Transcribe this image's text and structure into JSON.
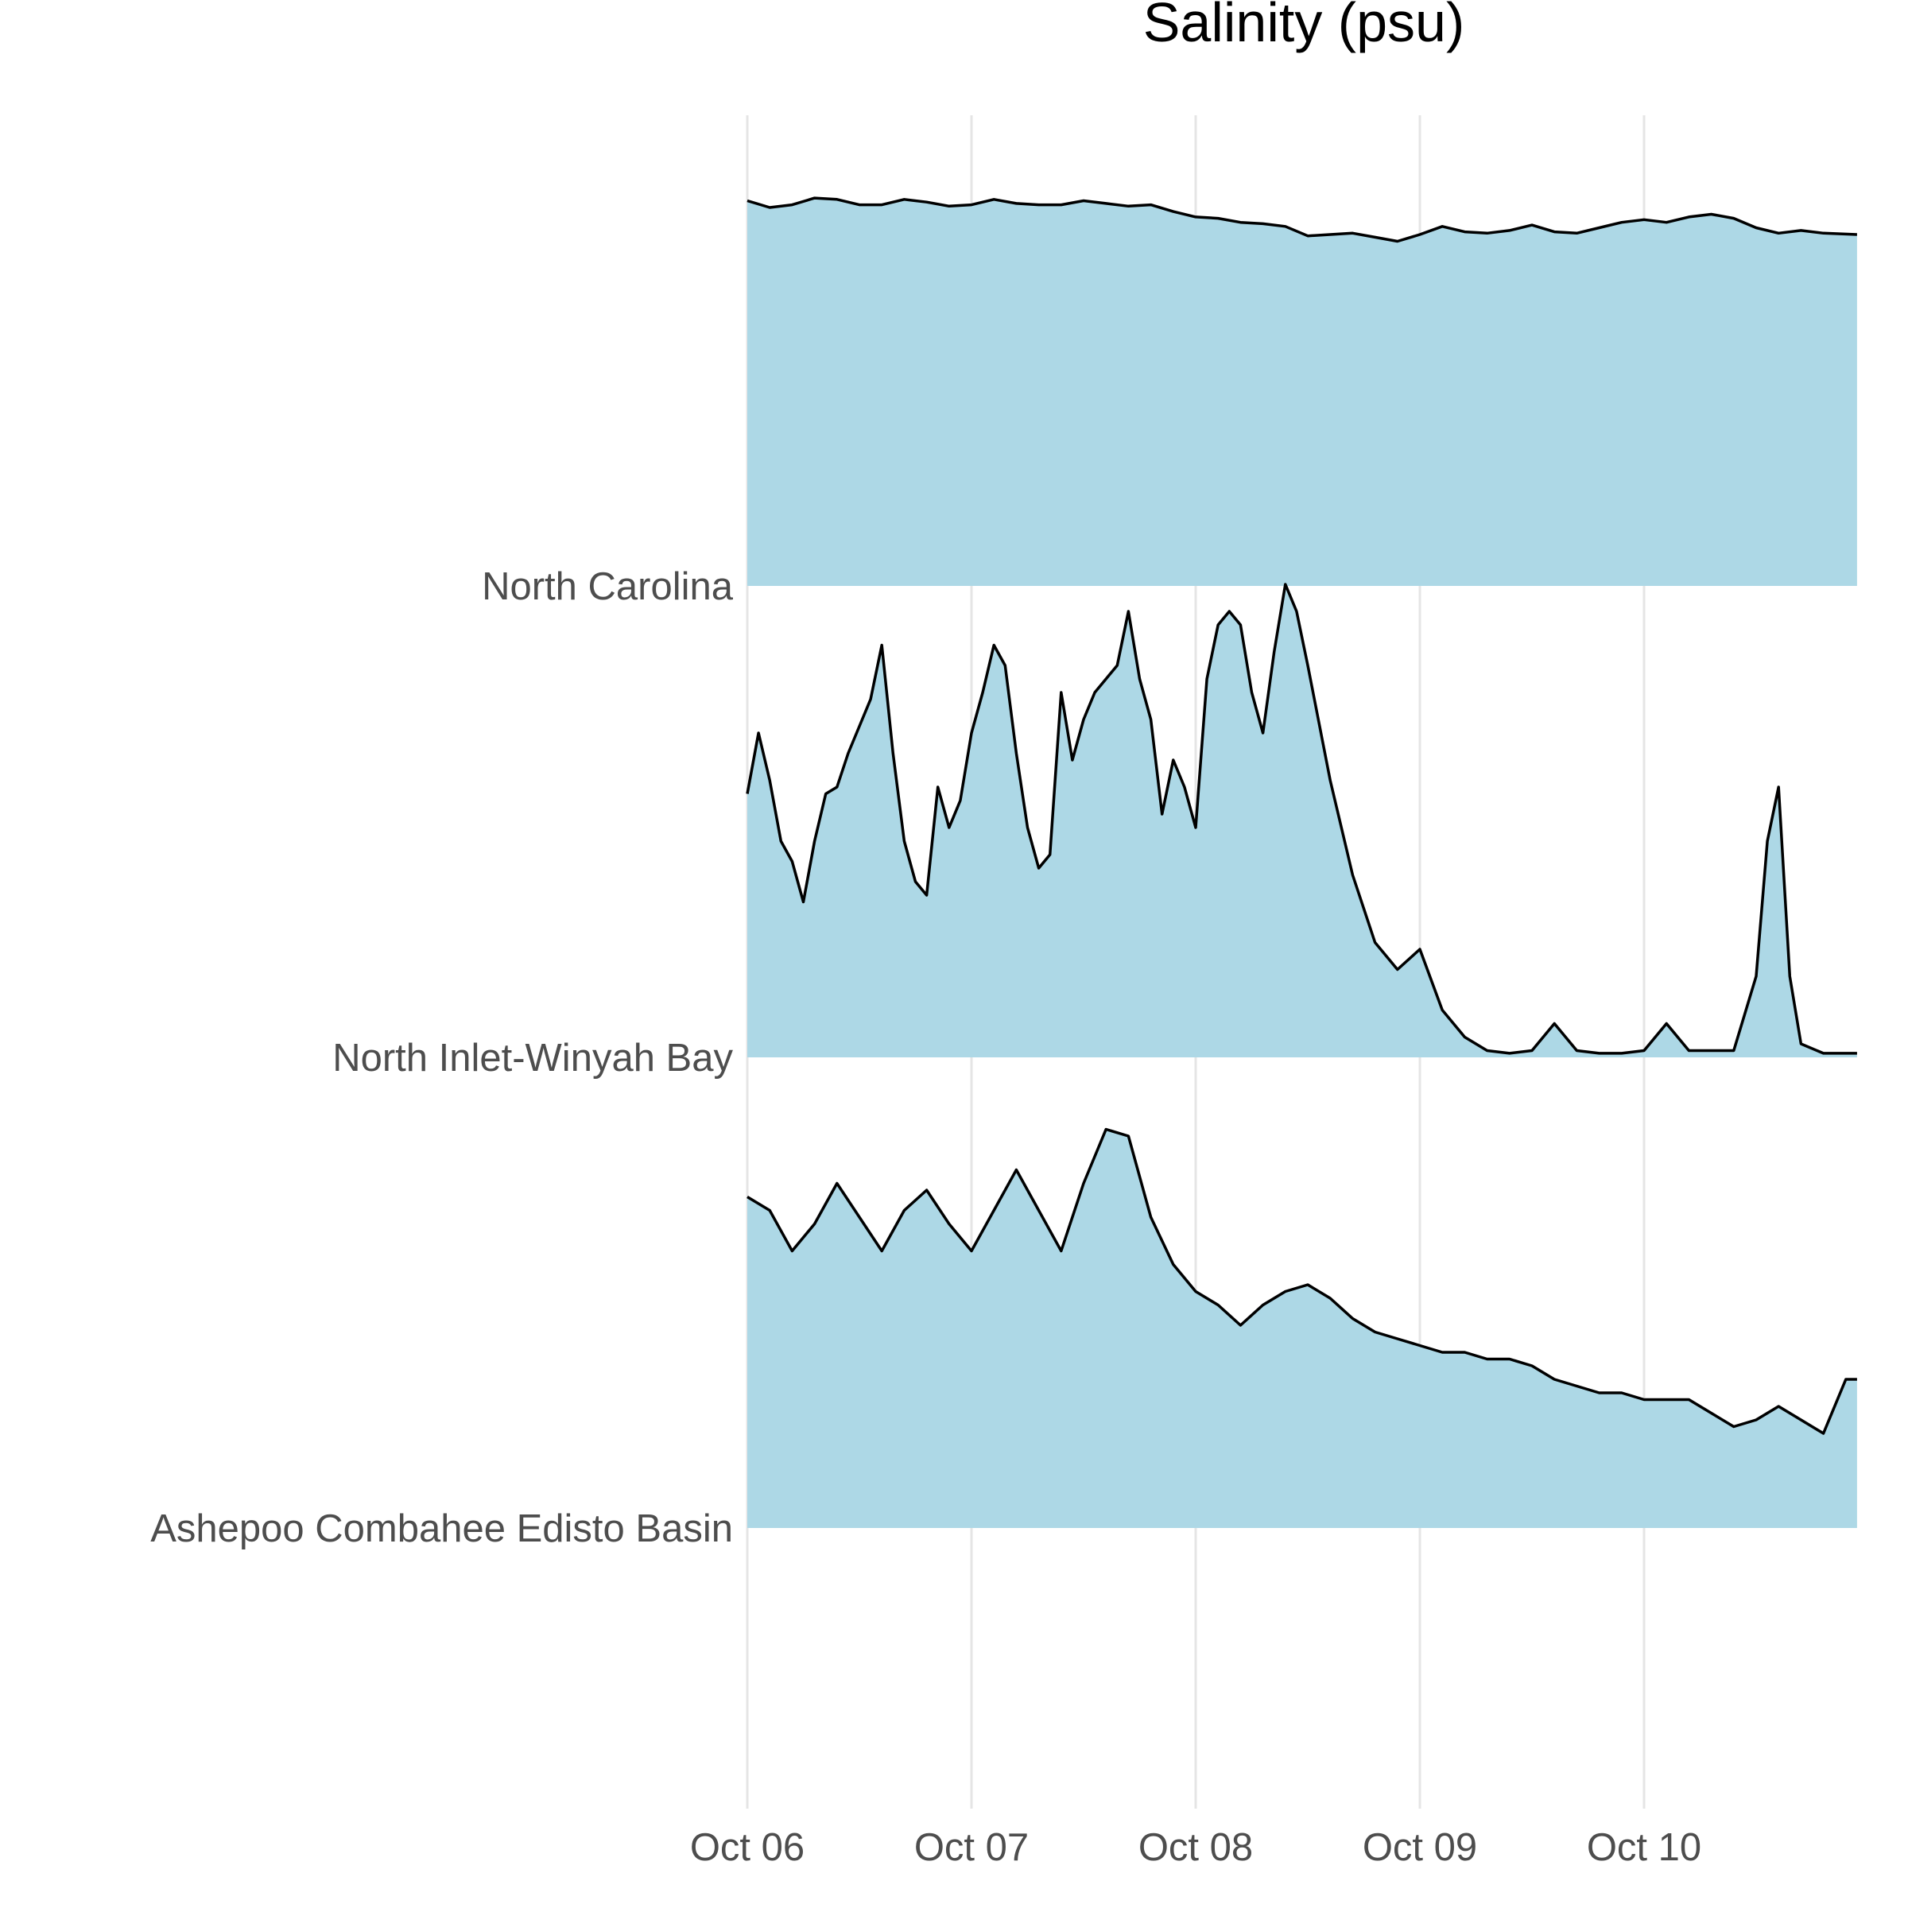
{
  "chart_data": {
    "type": "area",
    "title": "Salinity (psu)",
    "xlabel": "",
    "ylabel": "",
    "layout": "ridgeline",
    "x_ticks": [
      "Oct 06",
      "Oct 07",
      "Oct 08",
      "Oct 09",
      "Oct 10"
    ],
    "x_range_days": [
      0,
      4.95
    ],
    "grid": "vertical major gridlines",
    "colors": {
      "fill": "#add8e6",
      "line": "#000000",
      "grid": "#e5e5e5",
      "text": "#4d4d4d"
    },
    "series": [
      {
        "name": "North Carolina",
        "x": [
          0,
          0.1,
          0.2,
          0.3,
          0.4,
          0.5,
          0.6,
          0.7,
          0.8,
          0.9,
          1.0,
          1.1,
          1.2,
          1.3,
          1.4,
          1.5,
          1.6,
          1.7,
          1.8,
          1.9,
          2.0,
          2.1,
          2.2,
          2.3,
          2.4,
          2.5,
          2.6,
          2.7,
          2.8,
          2.9,
          3.0,
          3.1,
          3.2,
          3.3,
          3.4,
          3.5,
          3.6,
          3.7,
          3.8,
          3.9,
          4.0,
          4.1,
          4.2,
          4.3,
          4.4,
          4.5,
          4.6,
          4.7,
          4.8,
          4.95
        ],
        "y": [
          28.5,
          28.0,
          28.2,
          28.7,
          28.6,
          28.2,
          28.2,
          28.6,
          28.4,
          28.1,
          28.2,
          28.6,
          28.3,
          28.2,
          28.2,
          28.5,
          28.3,
          28.1,
          28.2,
          27.7,
          27.3,
          27.2,
          26.9,
          26.8,
          26.6,
          25.9,
          26.0,
          26.1,
          25.8,
          25.5,
          26.0,
          26.6,
          26.2,
          26.1,
          26.3,
          26.7,
          26.2,
          26.1,
          26.5,
          26.9,
          27.1,
          26.9,
          27.3,
          27.5,
          27.2,
          26.5,
          26.1,
          26.3,
          26.1,
          26.0
        ]
      },
      {
        "name": "North Inlet-Winyah Bay",
        "x": [
          0,
          0.05,
          0.1,
          0.15,
          0.2,
          0.25,
          0.3,
          0.35,
          0.4,
          0.45,
          0.5,
          0.55,
          0.6,
          0.65,
          0.7,
          0.75,
          0.8,
          0.85,
          0.9,
          0.95,
          1.0,
          1.05,
          1.1,
          1.15,
          1.2,
          1.25,
          1.3,
          1.35,
          1.4,
          1.45,
          1.5,
          1.55,
          1.6,
          1.65,
          1.7,
          1.75,
          1.8,
          1.85,
          1.9,
          1.95,
          2.0,
          2.05,
          2.1,
          2.15,
          2.2,
          2.25,
          2.3,
          2.35,
          2.4,
          2.45,
          2.5,
          2.6,
          2.7,
          2.8,
          2.9,
          3.0,
          3.1,
          3.2,
          3.3,
          3.4,
          3.5,
          3.6,
          3.7,
          3.8,
          3.9,
          4.0,
          4.1,
          4.2,
          4.3,
          4.4,
          4.5,
          4.55,
          4.6,
          4.65,
          4.7,
          4.8,
          4.95
        ],
        "y": [
          19.5,
          24,
          20.5,
          16,
          14.5,
          11.5,
          16,
          19.5,
          20,
          22.5,
          24.5,
          26.5,
          30.5,
          22.5,
          16,
          13,
          12,
          20,
          17,
          19,
          24,
          27,
          30.5,
          29,
          22.5,
          17,
          14,
          15,
          27,
          22,
          25,
          27,
          28,
          29,
          33,
          28,
          25,
          18,
          22,
          20,
          17,
          28,
          32,
          33,
          32,
          27,
          24,
          30,
          35,
          33,
          29,
          20.5,
          13.5,
          8.5,
          6.5,
          8,
          3.5,
          1.5,
          0.5,
          0.3,
          0.5,
          2.5,
          0.5,
          0.3,
          0.3,
          0.5,
          2.5,
          0.5,
          0.5,
          0.5,
          6,
          16,
          20,
          6,
          1,
          0.3,
          0.3
        ]
      },
      {
        "name": "Ashepoo Combahee Edisto Basin",
        "x": [
          0,
          0.1,
          0.2,
          0.3,
          0.4,
          0.5,
          0.6,
          0.7,
          0.8,
          0.9,
          1.0,
          1.1,
          1.2,
          1.3,
          1.4,
          1.5,
          1.6,
          1.7,
          1.8,
          1.9,
          2.0,
          2.1,
          2.2,
          2.3,
          2.4,
          2.5,
          2.6,
          2.7,
          2.8,
          2.9,
          3.0,
          3.1,
          3.2,
          3.3,
          3.4,
          3.5,
          3.6,
          3.7,
          3.8,
          3.9,
          4.0,
          4.1,
          4.2,
          4.3,
          4.4,
          4.5,
          4.6,
          4.7,
          4.8,
          4.9,
          4.95
        ],
        "y": [
          24.5,
          23.5,
          20.5,
          22.5,
          25.5,
          23,
          20.5,
          23.5,
          25,
          22.5,
          20.5,
          23.5,
          26.5,
          23.5,
          20.5,
          25.5,
          29.5,
          29,
          23,
          19.5,
          17.5,
          16.5,
          15,
          16.5,
          17.5,
          18,
          17,
          15.5,
          14.5,
          14,
          13.5,
          13,
          13,
          12.5,
          12.5,
          12,
          11,
          10.5,
          10,
          10,
          9.5,
          9.5,
          9.5,
          8.5,
          7.5,
          8,
          9,
          8,
          7,
          11,
          11
        ]
      }
    ]
  }
}
